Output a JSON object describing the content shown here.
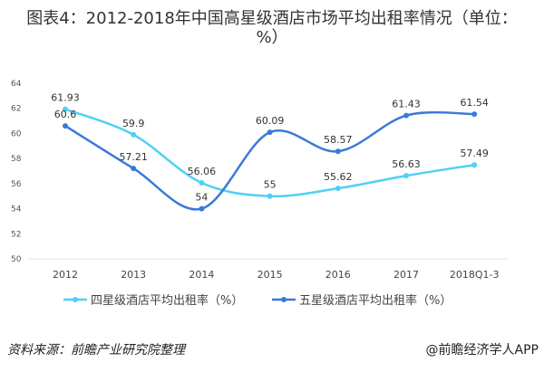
{
  "title": "图表4：2012-2018年中国高星级酒店市场平均出租率情况（单位：%）",
  "source": "资料来源：前瞻产业研究院整理",
  "brand": "@前瞻经济学人APP",
  "chart_data": {
    "type": "line",
    "title": "图表4：2012-2018年中国高星级酒店市场平均出租率情况（单位：%）",
    "xlabel": "",
    "ylabel": "",
    "categories": [
      "2012",
      "2013",
      "2014",
      "2015",
      "2016",
      "2017",
      "2018Q1-3"
    ],
    "ylim": [
      50,
      64
    ],
    "yticks": [
      50,
      52,
      54,
      56,
      58,
      60,
      62,
      64
    ],
    "grid": false,
    "legend": "bottom",
    "smooth": true,
    "series": [
      {
        "name": "四星级酒店平均出租率（%）",
        "color": "#4fd0f7",
        "values": [
          61.93,
          59.9,
          56.06,
          55,
          55.62,
          56.63,
          57.49
        ]
      },
      {
        "name": "五星级酒店平均出租率（%）",
        "color": "#3b7ad9",
        "values": [
          60.6,
          57.21,
          54,
          60.09,
          58.57,
          61.43,
          61.54
        ]
      }
    ]
  }
}
